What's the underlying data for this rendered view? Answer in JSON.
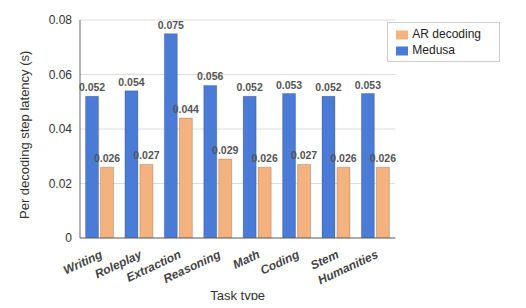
{
  "chart_data": {
    "type": "bar",
    "categories": [
      "Writing",
      "Roleplay",
      "Extraction",
      "Reasoning",
      "Math",
      "Coding",
      "Stem",
      "Humanities"
    ],
    "series": [
      {
        "name": "Medusa",
        "color": "#4a7bd6",
        "values": [
          0.052,
          0.054,
          0.075,
          0.056,
          0.052,
          0.053,
          0.052,
          0.053
        ]
      },
      {
        "name": "AR decoding",
        "color": "#f4b27f",
        "values": [
          0.026,
          0.027,
          0.044,
          0.029,
          0.026,
          0.027,
          0.026,
          0.026
        ]
      }
    ],
    "x_label": "Task type",
    "y_label": "Per decoding step latency (s)",
    "ylim": [
      0,
      0.08
    ],
    "yticks": [
      0,
      0.02,
      0.04,
      0.06,
      0.08
    ],
    "grid": true,
    "legend": "upper right",
    "data_labels": true
  }
}
